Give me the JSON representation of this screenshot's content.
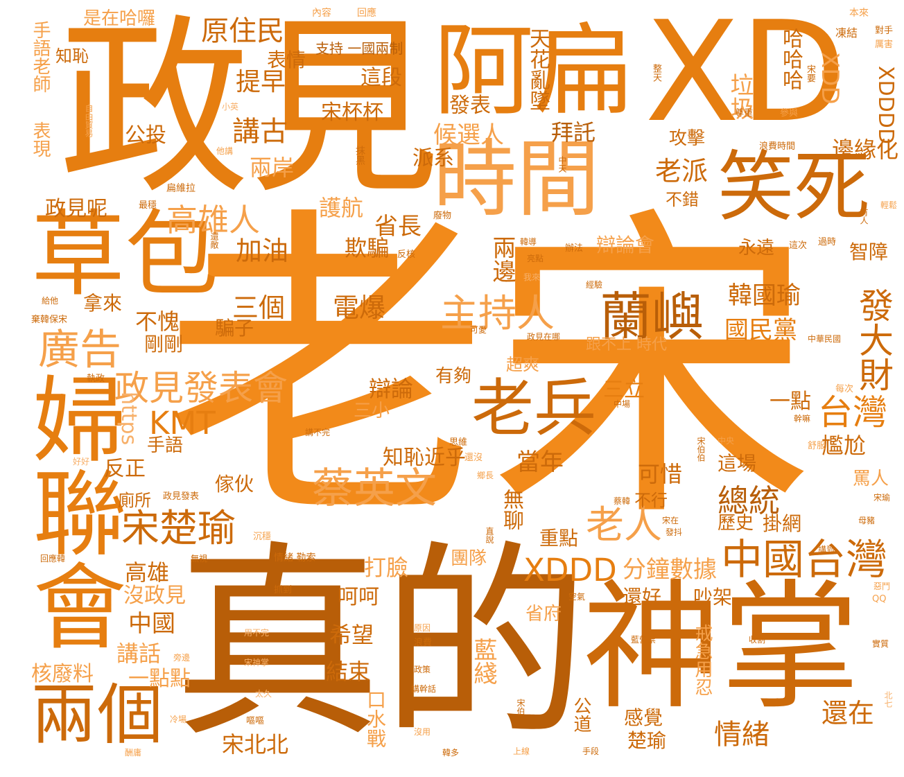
{
  "words": {
    "laosong": "老宋",
    "zhende": "真的",
    "shenzhang": "神掌",
    "zhengjian": "政見",
    "abian": "阿扁",
    "xd": "XD",
    "shijian": "時間",
    "xiaosi": "笑死",
    "caobao": "草包",
    "fulianhui": "婦聯會",
    "liangge": "兩個",
    "laobing": "老兵",
    "lanyu": "蘭嶼",
    "zhuchiren": "主持人",
    "guanggao": "廣告",
    "zhengjianfabiaohui": "政見發表會",
    "kmt": "KMT",
    "caiyingwen": "蔡英文",
    "songchuyu": "宋楚瑜",
    "laoren": "老人",
    "zhongguotaiwan": "中國台灣",
    "xddd": "XDDD",
    "taiwan": "台灣",
    "fadacai": "發大財",
    "zongtong": "總統",
    "guominda": "國民黨",
    "hanguoyu": "韓國瑜",
    "yuanzhumin": "原住民",
    "gaoxiongren": "高雄人",
    "jianggu": "講古",
    "houxuanren": "候選人",
    "bianyuanhua": "邊緣化",
    "laopai": "老派",
    "bianlunhui": "辯論會",
    "sanli": "三立",
    "sange": "三個",
    "dianbao": "電爆",
    "buxie": "不愧",
    "jiayou": "加油",
    "shengzhang": "省長",
    "qipian": "欺騙",
    "lianbian": "兩邊",
    "huhang": "護航",
    "liangan": "兩岸",
    "zhengjianne": "政見呢",
    "gongtou": "公投",
    "tizao": "提早",
    "biaoqing": "表情",
    "shizaihaluo": "是在哈囉",
    "shouyulaoshi": "手語老師",
    "zhichi": "知恥",
    "biaoxian": "表現",
    "zhichi_yiguo": "支持 一國兩制",
    "zheduan": "這段",
    "songbeibei": "宋杯杯",
    "fabiao": "發表",
    "tianhualuanzhui": "天花亂墜",
    "baituo": "拜託",
    "paixi": "派系",
    "gongji": "攻擊",
    "lese": "垃圾",
    "hahaha": "哈哈哈",
    "xdd": "XDD",
    "xdddd": "XDDDD",
    "bucuo": "不錯",
    "yongyuan": "永遠",
    "zhizhang": "智障",
    "bianlun": "辯論",
    "zhichijinhu": "知恥近乎",
    "dangnian": "當年",
    "kexi": "可惜",
    "youguo": "有夠",
    "chaoshuang": "超爽",
    "gengbushang": "跟不上 時代",
    "yidian": "一點",
    "ganga": "尷尬",
    "zhechang": "這場",
    "maren": "罵人",
    "lishi": "歷史",
    "guawang": "掛網",
    "zhongdian": "重點",
    "buxing": "不行",
    "wuliao": "無聊",
    "fenzhongshuju": "分鐘數據",
    "dalian": "打臉",
    "tuandui": "團隊",
    "hehe": "呵呵",
    "xiwang": "希望",
    "jieshu": "結束",
    "lanxian": "藍綫",
    "koushuizhan": "口水戰",
    "shengfu": "省府",
    "haihao": "還好",
    "chaojia": "吵架",
    "jiejiyongren": "戒急用忍",
    "gandao": "感覺",
    "chuyu": "楚瑜",
    "gongdao": "公道",
    "qingxu": "情緒",
    "haizai": "還在",
    "songbeibei2": "宋北北",
    "gaoxiong": "高雄",
    "meizhengjian": "沒政見",
    "zhongguo": "中國",
    "jianghua": "講話",
    "hefeiliao": "核廢料",
    "yidiandian": "一點點",
    "shouyu": "手語",
    "fanzheng": "反正",
    "jiahuo": "傢伙",
    "cesuo": "廁所",
    "gangang": "剛剛",
    "pianzi": "騙子",
    "nalai": "拿來",
    "sanxiao": "三小",
    "https": "https",
    "neirong": "內容",
    "huiying": "回應",
    "benlai": "本來",
    "dongjie": "凍結",
    "duishou": "對手",
    "lihai": "厲害",
    "zuntian": "整天",
    "songyao": "宋要",
    "zunzhong": "尊重",
    "canyu": "參與",
    "langfeishijian": "浪費時間",
    "xiaoying": "小英",
    "ziyoumaoyi": "自由貿易",
    "tajiang": "他講",
    "heipiao": "抹黑",
    "zhongtian": "中天",
    "bianweila": "扁維拉",
    "zuiwen": "最穩",
    "feiwu": "廢物",
    "hanguan": "韓導",
    "liangdian": "亮點",
    "banfa": "辦法",
    "zheci": "這次",
    "guoshi": "過時",
    "youren": "有人",
    "qingsong": "輕鬆",
    "huandi": "還敵",
    "fanhe": "反核",
    "wolai": "我來",
    "jingyan": "經驗",
    "geita": "給他",
    "qihanbaosong": "棄韓保宋",
    "keai": "可愛",
    "zhengjianzaina": "政見在哪",
    "zhonghuaminguo": "中華民國",
    "zhizheng": "執政",
    "meici": "每次",
    "zhongchang": "中場",
    "ganma": "幹嘛",
    "jiangbuwan": "講不完",
    "siwei": "思維",
    "haimei": "還沒",
    "songbobo": "宋伯伯",
    "zhongyang": "中央",
    "shufu": "舒服",
    "haohao": "好好",
    "xiangzhang": "鄉長",
    "caihan": "蔡韓",
    "songyu": "宋瑜",
    "zhengjianfabiao2": "政見發表",
    "songzai": "宋在",
    "fadou": "發抖",
    "muzhu": "母豬",
    "chenwen": "沉穩",
    "zhishuo": "直說",
    "jiangdao": "講到",
    "huiyinghan": "回應韓",
    "wushi": "無視",
    "qingxulesuo": "情緒 勒索",
    "zhuadao": "抓到",
    "kongqi": "空氣",
    "emen": "惡鬥",
    "qq": "QQ",
    "yongbuwan": "用不完",
    "yuanyin": "原因",
    "langfei": "浪費",
    "lanyingpiao": "藍營票",
    "shouge": "收割",
    "shizhi": "實質",
    "pangbian": "旁邊",
    "songshenzhang": "宋神掌",
    "zhengce": "政策",
    "jiangganhua": "講幹話",
    "tiajiu": "太久",
    "songbo": "宋伯",
    "beiqi": "北七",
    "lengchang": "冷場",
    "ouou": "嘔嘔",
    "meiyong": "沒用",
    "shangxian": "上線",
    "shouduan": "手段",
    "handuo": "韓多",
    "yongyong": "酬庸"
  }
}
